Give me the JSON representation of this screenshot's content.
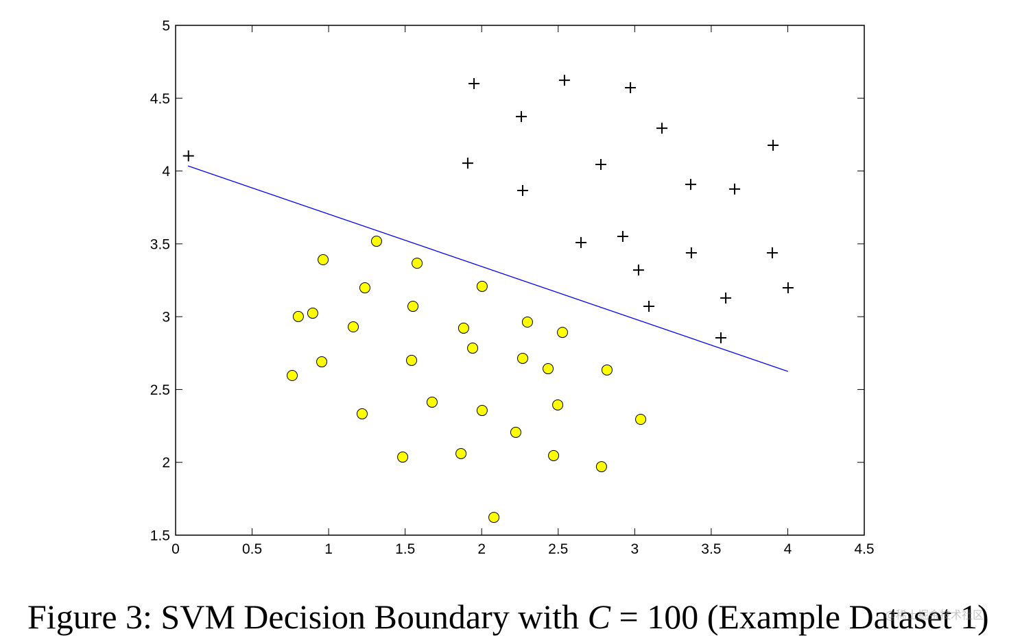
{
  "chart_data": {
    "type": "scatter",
    "title": "",
    "xlabel": "",
    "ylabel": "",
    "xlim": [
      0,
      4.5
    ],
    "ylim": [
      1.5,
      5
    ],
    "grid": false,
    "x_tick_labels": [
      "0",
      "0.5",
      "1",
      "1.5",
      "2",
      "2.5",
      "3",
      "3.5",
      "4",
      "4.5"
    ],
    "y_tick_labels": [
      "1.5",
      "2",
      "2.5",
      "3",
      "3.5",
      "4",
      "4.5",
      "5"
    ],
    "colors": {
      "axes": "#000000",
      "plus": "#000000",
      "circle_fill": "#ffff00",
      "circle_edge": "#000000",
      "boundary": "#0000ff"
    },
    "positive_plus_points": [
      [
        0.084,
        4.104
      ],
      [
        1.95,
        4.6
      ],
      [
        2.541,
        4.623
      ],
      [
        2.972,
        4.572
      ],
      [
        2.259,
        4.374
      ],
      [
        3.178,
        4.294
      ],
      [
        3.904,
        4.177
      ],
      [
        1.909,
        4.054
      ],
      [
        2.779,
        4.045
      ],
      [
        2.268,
        3.866
      ],
      [
        3.366,
        3.908
      ],
      [
        3.653,
        3.876
      ],
      [
        2.649,
        3.509
      ],
      [
        2.922,
        3.551
      ],
      [
        3.025,
        3.32
      ],
      [
        3.37,
        3.438
      ],
      [
        3.899,
        3.438
      ],
      [
        4.002,
        3.198
      ],
      [
        3.093,
        3.071
      ],
      [
        3.595,
        3.128
      ],
      [
        3.563,
        2.855
      ]
    ],
    "negative_circle_points": [
      [
        1.313,
        3.518
      ],
      [
        0.964,
        3.391
      ],
      [
        1.578,
        3.367
      ],
      [
        1.237,
        3.198
      ],
      [
        2.003,
        3.208
      ],
      [
        1.551,
        3.071
      ],
      [
        0.802,
        3.001
      ],
      [
        0.896,
        3.024
      ],
      [
        1.161,
        2.93
      ],
      [
        1.882,
        2.921
      ],
      [
        2.299,
        2.963
      ],
      [
        2.528,
        2.892
      ],
      [
        1.941,
        2.784
      ],
      [
        0.955,
        2.69
      ],
      [
        1.542,
        2.7
      ],
      [
        2.268,
        2.714
      ],
      [
        0.762,
        2.596
      ],
      [
        2.434,
        2.643
      ],
      [
        2.819,
        2.634
      ],
      [
        1.676,
        2.413
      ],
      [
        1.219,
        2.333
      ],
      [
        2.003,
        2.356
      ],
      [
        2.497,
        2.394
      ],
      [
        3.039,
        2.295
      ],
      [
        2.223,
        2.206
      ],
      [
        1.484,
        2.036
      ],
      [
        1.865,
        2.06
      ],
      [
        2.47,
        2.046
      ],
      [
        2.783,
        1.97
      ],
      [
        2.08,
        1.622
      ]
    ],
    "decision_boundary": {
      "x": [
        0.081,
        4.002
      ],
      "y": [
        4.035,
        2.624
      ]
    }
  },
  "caption": {
    "prefix": "Figure 3: SVM Decision Boundary with ",
    "variable": "C",
    "suffix": " = 100 (Example Dataset 1)"
  },
  "watermark": "@稀土掘金技术社区"
}
